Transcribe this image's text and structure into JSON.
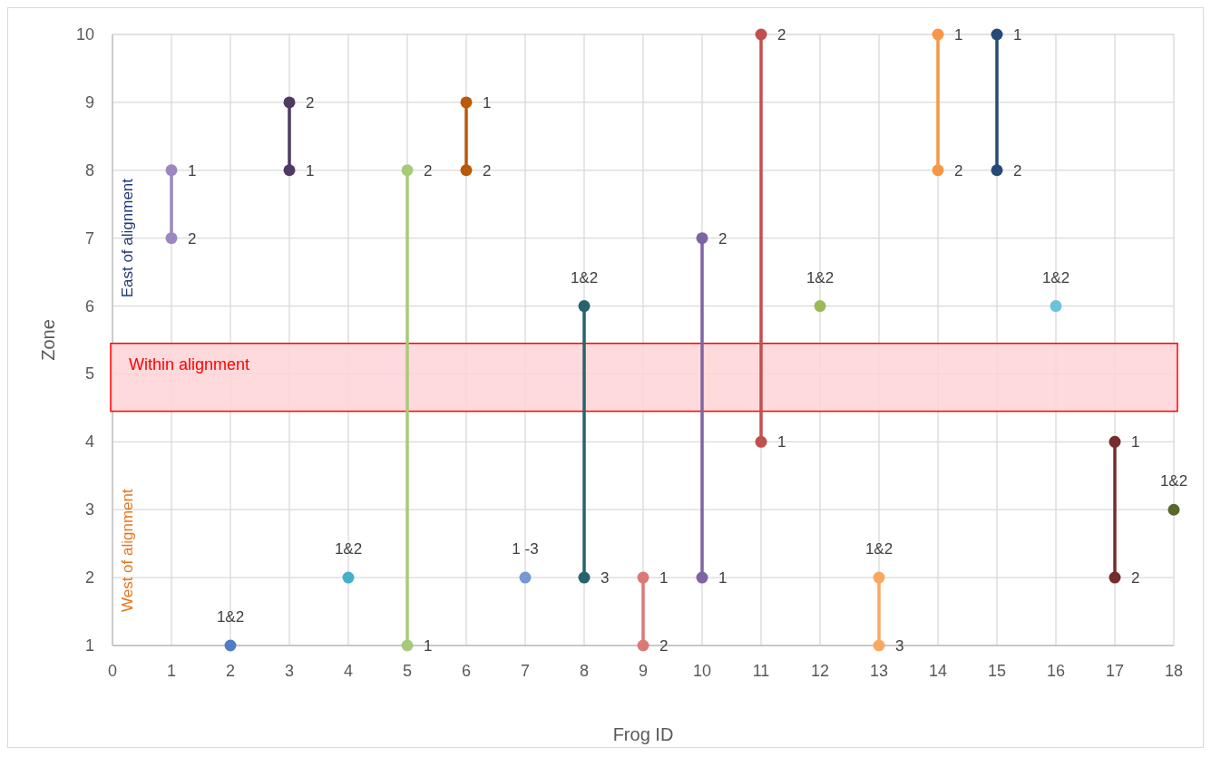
{
  "chart_data": {
    "type": "line",
    "xlabel": "Frog ID",
    "ylabel": "Zone",
    "xlim": [
      0,
      18
    ],
    "xticks": [
      0,
      1,
      2,
      3,
      4,
      5,
      6,
      7,
      8,
      9,
      10,
      11,
      12,
      13,
      14,
      15,
      16,
      17,
      18
    ],
    "ylim": [
      1,
      10
    ],
    "yticks": [
      1,
      2,
      3,
      4,
      5,
      6,
      7,
      8,
      9,
      10
    ],
    "grid": true,
    "marker": "circle",
    "line_style": "solid",
    "bands": [
      {
        "axis": "y",
        "from": 4.45,
        "to": 5.45,
        "label": "Within alignment",
        "color": "#ffd3d6"
      }
    ],
    "annotations": [
      "East of alignment",
      "West of alignment",
      {
        "text": "1",
        "x": 1,
        "y": 8
      },
      {
        "text": "2",
        "x": 1,
        "y": 7
      },
      {
        "text": "1&2",
        "x": 2,
        "y": 1
      },
      {
        "text": "2",
        "x": 3,
        "y": 9
      },
      {
        "text": "1",
        "x": 3,
        "y": 8
      },
      {
        "text": "1&2",
        "x": 4,
        "y": 2
      },
      {
        "text": "2",
        "x": 5,
        "y": 8
      },
      {
        "text": "1",
        "x": 5,
        "y": 1
      },
      {
        "text": "1",
        "x": 6,
        "y": 9
      },
      {
        "text": "2",
        "x": 6,
        "y": 8
      },
      {
        "text": "1 -3",
        "x": 7,
        "y": 2
      },
      {
        "text": "1&2",
        "x": 8,
        "y": 6
      },
      {
        "text": "3",
        "x": 8,
        "y": 2
      },
      {
        "text": "1",
        "x": 9,
        "y": 2
      },
      {
        "text": "2",
        "x": 9,
        "y": 1
      },
      {
        "text": "2",
        "x": 10,
        "y": 7
      },
      {
        "text": "1",
        "x": 10,
        "y": 2
      },
      {
        "text": "2",
        "x": 11,
        "y": 10
      },
      {
        "text": "1",
        "x": 11,
        "y": 4
      },
      {
        "text": "1&2",
        "x": 12,
        "y": 6
      },
      {
        "text": "1&2",
        "x": 13,
        "y": 2
      },
      {
        "text": "3",
        "x": 13,
        "y": 1
      },
      {
        "text": "1",
        "x": 14,
        "y": 10
      },
      {
        "text": "2",
        "x": 14,
        "y": 8
      },
      {
        "text": "1",
        "x": 15,
        "y": 10
      },
      {
        "text": "2",
        "x": 15,
        "y": 8
      },
      {
        "text": "1&2",
        "x": 16,
        "y": 6
      },
      {
        "text": "1",
        "x": 17,
        "y": 4
      },
      {
        "text": "2",
        "x": 17,
        "y": 2
      },
      {
        "text": "1&2",
        "x": 18,
        "y": 3
      }
    ],
    "series": [
      {
        "color": "#9e86c0",
        "x": [
          1,
          1
        ],
        "values": [
          8,
          7
        ]
      },
      {
        "color": "#4f7cc4",
        "x": [
          2
        ],
        "values": [
          1
        ]
      },
      {
        "color": "#4e3b64",
        "x": [
          3,
          3
        ],
        "values": [
          9,
          8
        ]
      },
      {
        "color": "#46b0c8",
        "x": [
          4
        ],
        "values": [
          2
        ]
      },
      {
        "color": "#a9c97a",
        "x": [
          5,
          5
        ],
        "values": [
          8,
          1
        ]
      },
      {
        "color": "#b85a0a",
        "x": [
          6,
          6
        ],
        "values": [
          9,
          8
        ]
      },
      {
        "color": "#7599d0",
        "x": [
          7
        ],
        "values": [
          2
        ]
      },
      {
        "color": "#26636e",
        "x": [
          8,
          8
        ],
        "values": [
          6,
          2
        ]
      },
      {
        "color": "#d97a78",
        "x": [
          9,
          9
        ],
        "values": [
          2,
          1
        ]
      },
      {
        "color": "#8064a2",
        "x": [
          10,
          10
        ],
        "values": [
          7,
          2
        ]
      },
      {
        "color": "#c0504d",
        "x": [
          11,
          11
        ],
        "values": [
          10,
          4
        ]
      },
      {
        "color": "#9bbb59",
        "x": [
          12
        ],
        "values": [
          6
        ]
      },
      {
        "color": "#f9a860",
        "x": [
          13,
          13
        ],
        "values": [
          2,
          1
        ]
      },
      {
        "color": "#f79646",
        "x": [
          14,
          14
        ],
        "values": [
          10,
          8
        ]
      },
      {
        "color": "#264a78",
        "x": [
          15,
          15
        ],
        "values": [
          10,
          8
        ]
      },
      {
        "color": "#6cc2d8",
        "x": [
          16
        ],
        "values": [
          6
        ]
      },
      {
        "color": "#772c2c",
        "x": [
          17,
          17
        ],
        "values": [
          4,
          2
        ]
      },
      {
        "color": "#58682a",
        "x": [
          18
        ],
        "values": [
          3
        ]
      }
    ]
  }
}
